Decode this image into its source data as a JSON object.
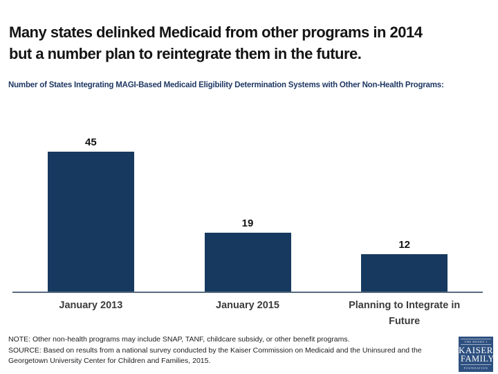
{
  "header": {
    "title_line1": "Many states delinked Medicaid from other programs in 2014",
    "title_line2": "but a number plan to reintegrate them in the future."
  },
  "chart_data": {
    "type": "bar",
    "title": "Number of States Integrating MAGI-Based Medicaid Eligibility Determination Systems with Other Non-Health Programs:",
    "categories": [
      "January 2013",
      "January 2015",
      "Planning to Integrate in Future"
    ],
    "values": [
      45,
      19,
      12
    ],
    "data_labels": [
      "45",
      "19",
      "12"
    ],
    "xlabel": "",
    "ylabel": "",
    "ylim": [
      0,
      50
    ],
    "grid": false,
    "legend": "none",
    "bar_color": "#17395F",
    "axis_line_color": "#566b7e"
  },
  "footer": {
    "note": "NOTE: Other non-health programs may include SNAP, TANF, childcare subsidy, or other benefit programs.",
    "source": "SOURCE: Based on results from a national survey conducted by the Kaiser Commission on Medicaid and the Uninsured and the Georgetown University Center for Children and Families, 2015."
  },
  "logo": {
    "line1": "THE HENRY J",
    "line2": "KAISER",
    "line3": "FAMILY",
    "line4": "FOUNDATION",
    "background_color": "#2e5080"
  },
  "colors": {
    "title_text": "#141414",
    "subtitle_text": "#1F3864",
    "category_label_text": "#3b3b3b",
    "background": "#ffffff"
  }
}
